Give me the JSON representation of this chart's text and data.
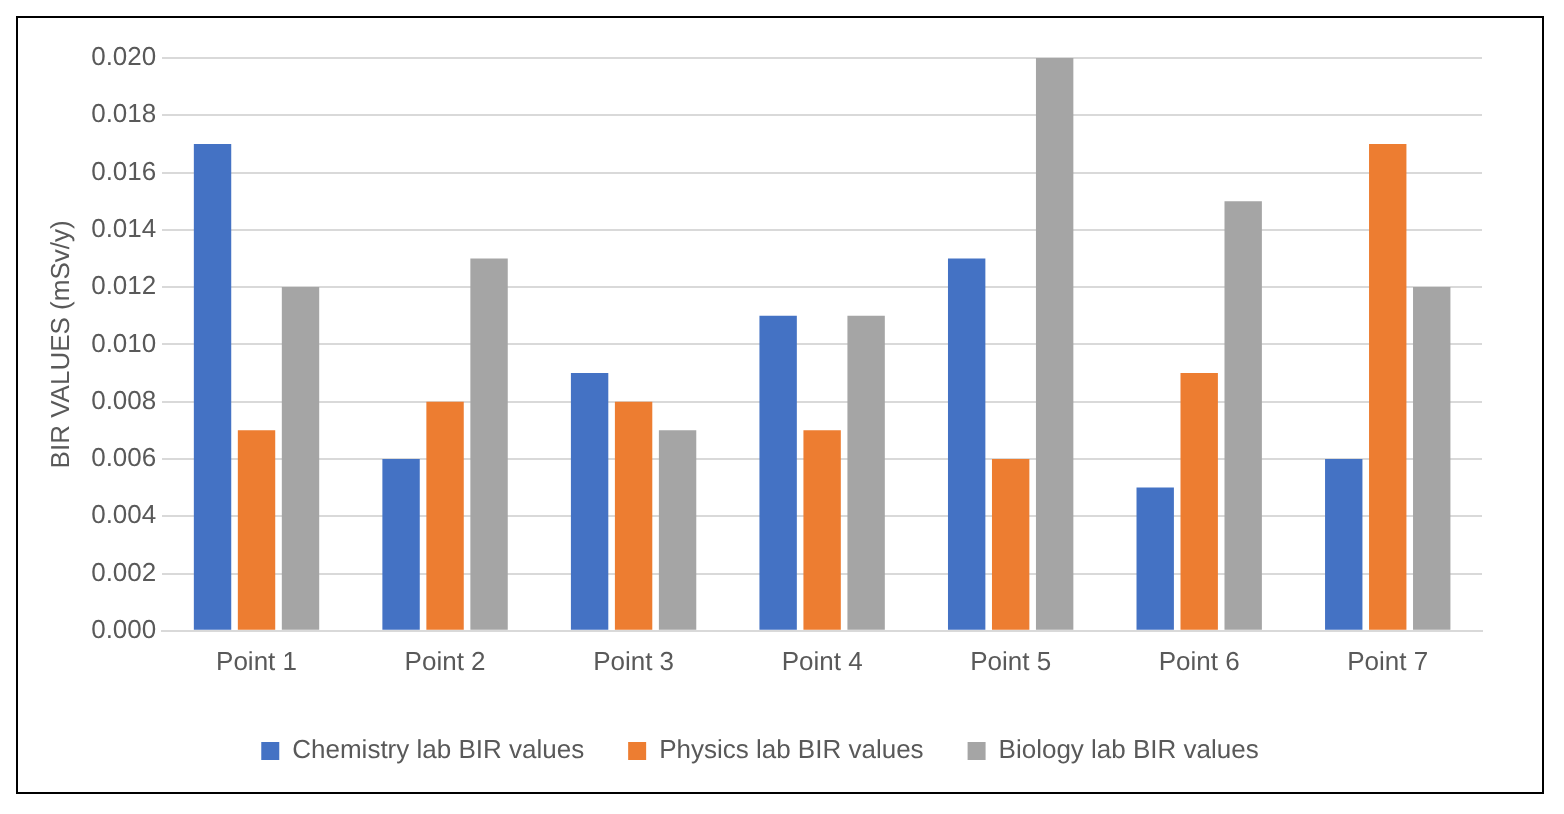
{
  "chart_data": {
    "type": "bar",
    "ylabel": "BIR VALUES (mSv/y)",
    "categories": [
      "Point 1",
      "Point 2",
      "Point 3",
      "Point 4",
      "Point 5",
      "Point 6",
      "Point 7"
    ],
    "series": [
      {
        "name": "Chemistry lab BIR values",
        "color": "#4472c4",
        "values": [
          0.017,
          0.006,
          0.009,
          0.011,
          0.013,
          0.005,
          0.006
        ]
      },
      {
        "name": "Physics lab BIR values",
        "color": "#ed7d31",
        "values": [
          0.007,
          0.008,
          0.008,
          0.007,
          0.006,
          0.009,
          0.017
        ]
      },
      {
        "name": "Biology lab BIR values",
        "color": "#a5a5a5",
        "values": [
          0.012,
          0.013,
          0.007,
          0.011,
          0.02,
          0.015,
          0.012
        ]
      }
    ],
    "ylim": [
      0,
      0.02
    ],
    "yticks": [
      {
        "value": 0,
        "label": "0.000"
      },
      {
        "value": 0.002,
        "label": "0.002"
      },
      {
        "value": 0.004,
        "label": "0.004"
      },
      {
        "value": 0.006,
        "label": "0.006"
      },
      {
        "value": 0.008,
        "label": "0.008"
      },
      {
        "value": 0.01,
        "label": "0.010"
      },
      {
        "value": 0.012,
        "label": "0.012"
      },
      {
        "value": 0.014,
        "label": "0.014"
      },
      {
        "value": 0.016,
        "label": "0.016"
      },
      {
        "value": 0.018,
        "label": "0.018"
      },
      {
        "value": 0.02,
        "label": "0.020"
      }
    ],
    "grid": "y",
    "legend": "bottom"
  }
}
